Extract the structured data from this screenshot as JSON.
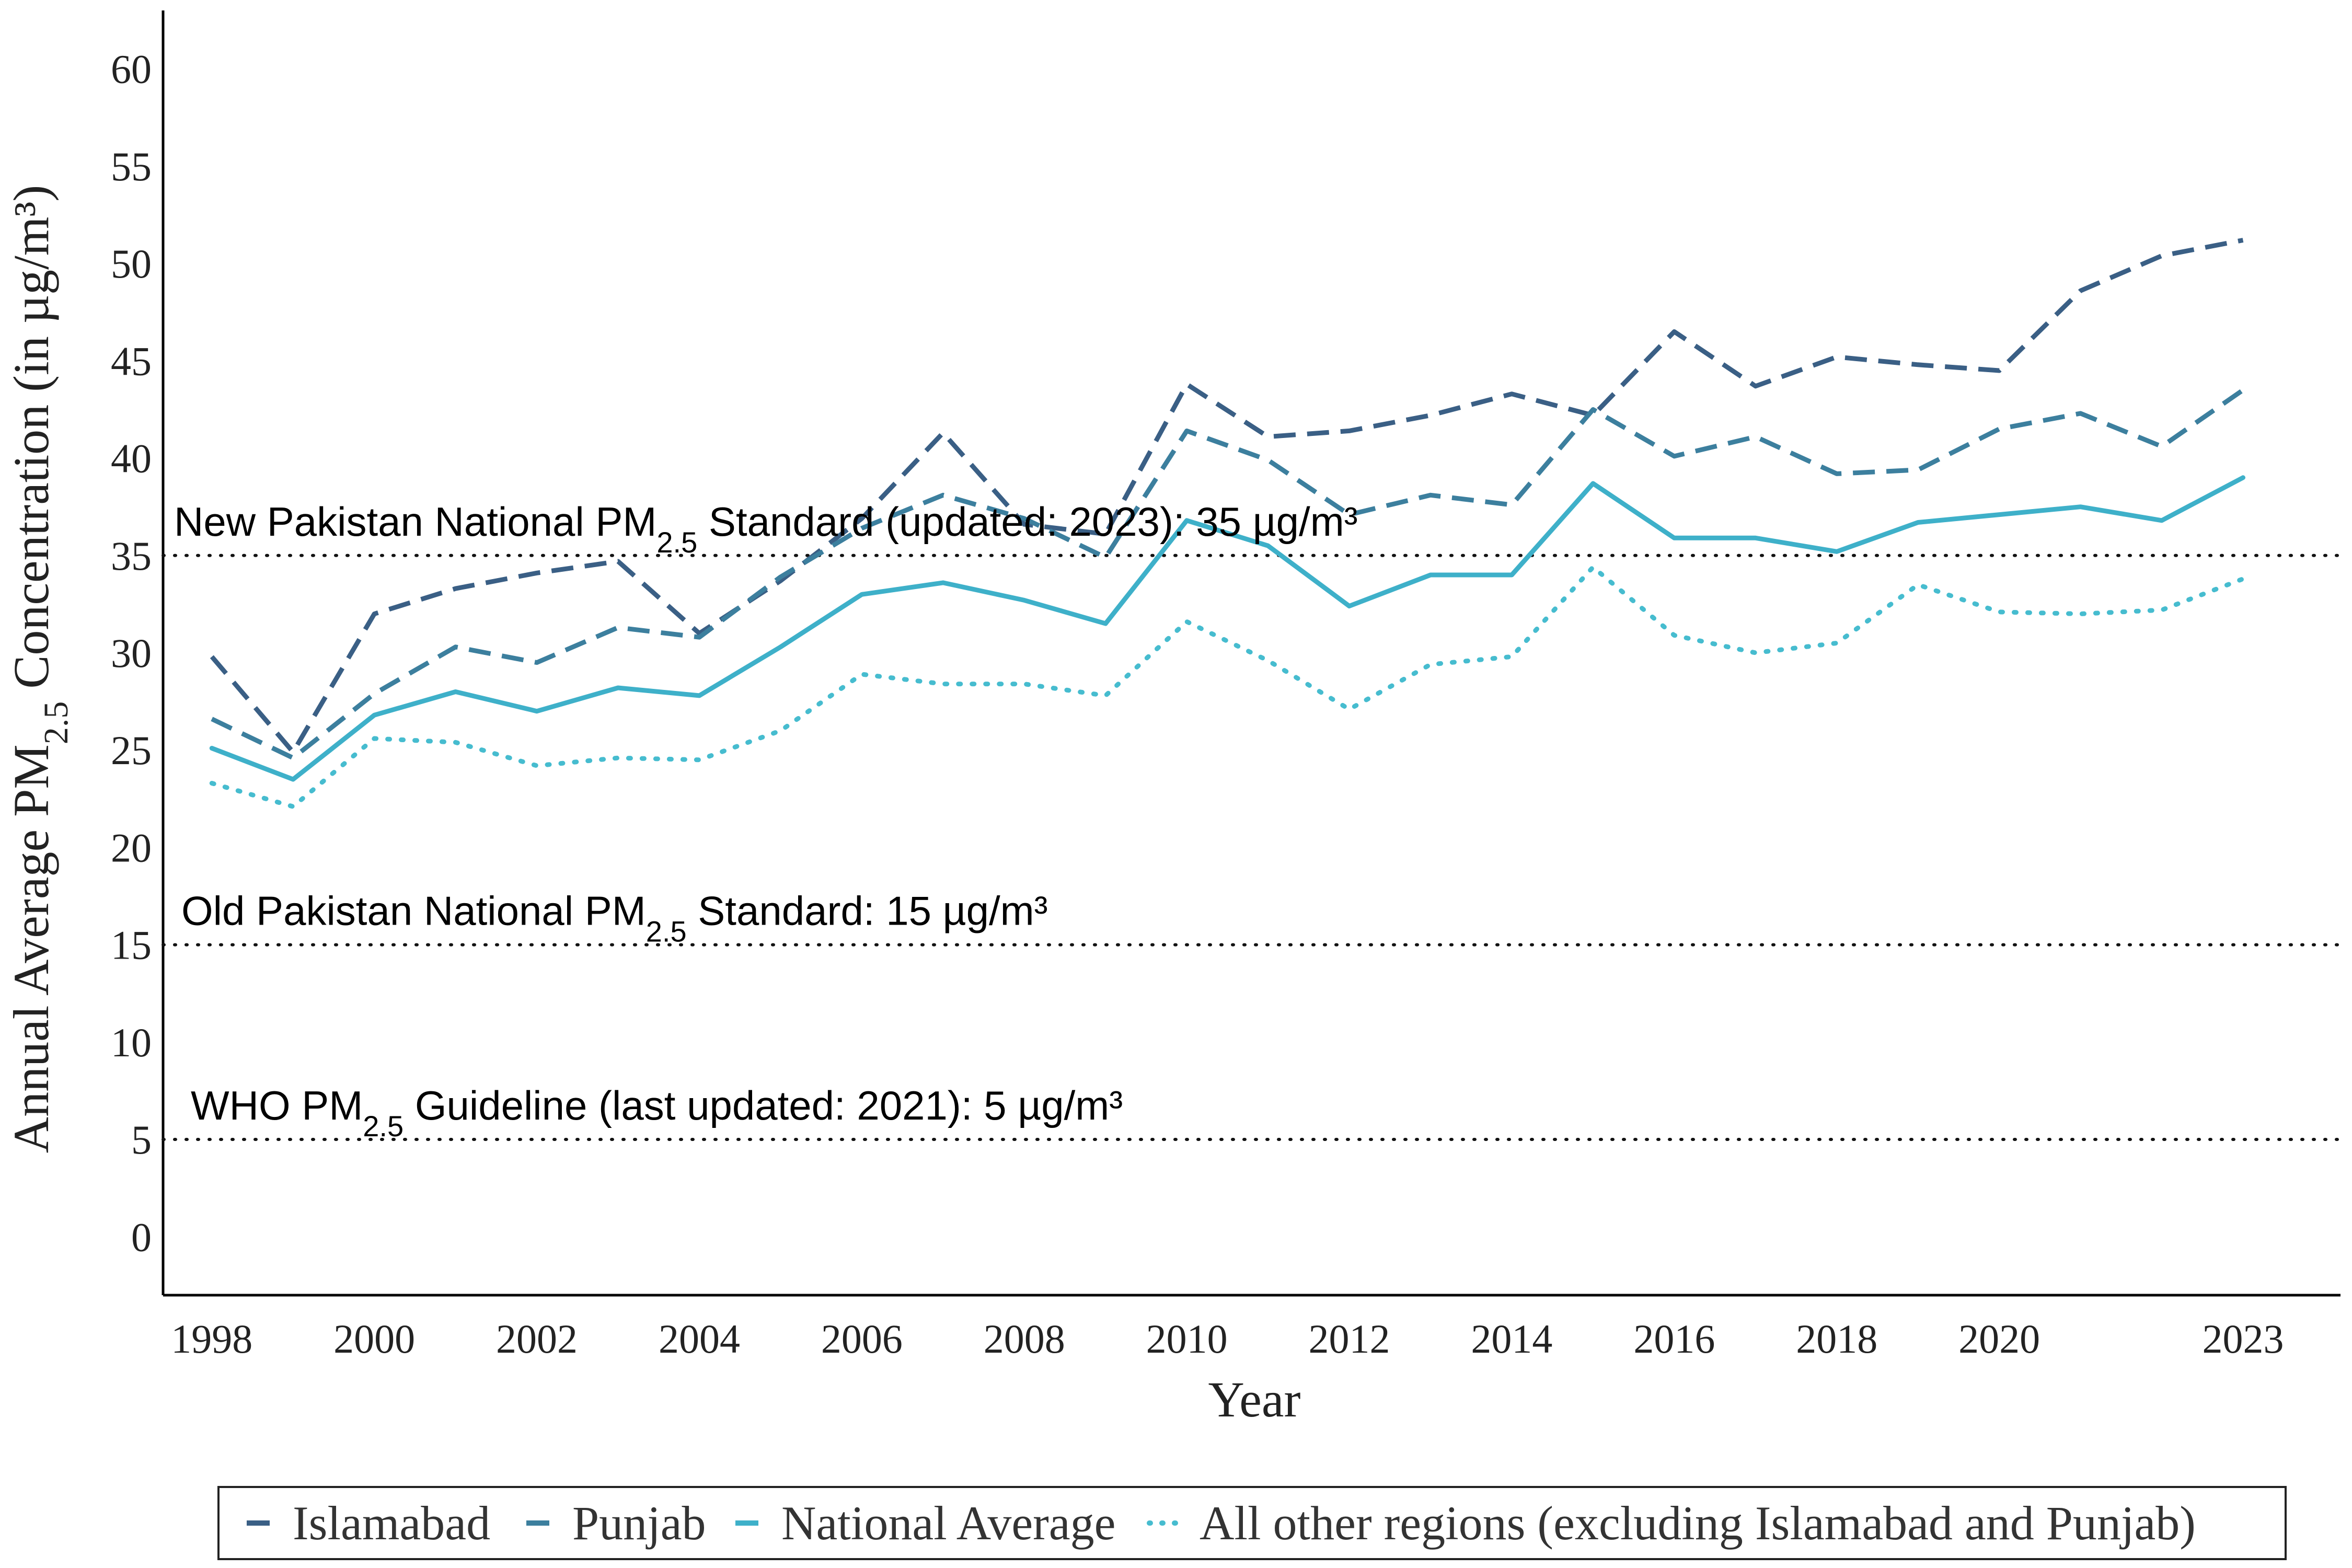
{
  "chart_data": {
    "type": "line",
    "xlabel": "Year",
    "ylabel": {
      "pre": "Annual Average PM",
      "sub": "2.5",
      "post": " Concentration (in µg/m³)"
    },
    "xlim": [
      1997.4,
      2024.2
    ],
    "ylim": [
      -3,
      63
    ],
    "x_ticks": [
      1998,
      2000,
      2002,
      2004,
      2006,
      2008,
      2010,
      2012,
      2014,
      2016,
      2018,
      2020,
      2023
    ],
    "y_ticks": [
      0,
      5,
      10,
      15,
      20,
      25,
      30,
      35,
      40,
      45,
      50,
      55,
      60
    ],
    "x": [
      1998,
      1999,
      2000,
      2001,
      2002,
      2003,
      2004,
      2005,
      2006,
      2007,
      2008,
      2009,
      2010,
      2011,
      2012,
      2013,
      2014,
      2015,
      2016,
      2017,
      2018,
      2019,
      2020,
      2021,
      2022,
      2023
    ],
    "series": [
      {
        "name": "Islamabad",
        "color": "#3a5f85",
        "style": "dashed",
        "values": [
          29.8,
          24.9,
          32.0,
          33.3,
          34.1,
          34.7,
          31.0,
          33.7,
          36.9,
          41.3,
          36.6,
          36.1,
          43.8,
          41.1,
          41.4,
          42.2,
          43.3,
          42.2,
          46.5,
          43.7,
          45.2,
          44.8,
          44.5,
          48.6,
          50.4,
          51.2
        ]
      },
      {
        "name": "Punjab",
        "color": "#3c7f9e",
        "style": "dashed",
        "values": [
          26.6,
          24.6,
          27.9,
          30.3,
          29.5,
          31.3,
          30.8,
          33.9,
          36.4,
          38.1,
          36.9,
          34.9,
          41.4,
          39.9,
          37.1,
          38.1,
          37.6,
          42.5,
          40.1,
          41.1,
          39.2,
          39.4,
          41.5,
          42.3,
          40.6,
          43.5
        ]
      },
      {
        "name": "National Average",
        "color": "#3eb0c9",
        "style": "solid",
        "values": [
          25.1,
          23.5,
          26.8,
          28.0,
          27.0,
          28.2,
          27.8,
          30.3,
          33.0,
          33.6,
          32.7,
          31.5,
          36.8,
          35.5,
          32.4,
          34.0,
          34.0,
          38.7,
          35.9,
          35.9,
          35.2,
          36.7,
          37.1,
          37.5,
          36.8,
          39.0
        ]
      },
      {
        "name": "All other regions (excluding Islamabad and Punjab)",
        "color": "#46bccf",
        "style": "dotted",
        "values": [
          23.3,
          22.1,
          25.6,
          25.4,
          24.2,
          24.6,
          24.5,
          26.0,
          28.9,
          28.4,
          28.4,
          27.8,
          31.6,
          29.6,
          27.1,
          29.4,
          29.8,
          34.4,
          30.9,
          30.0,
          30.5,
          33.5,
          32.1,
          32.0,
          32.2,
          33.8
        ]
      }
    ],
    "reference_lines": [
      {
        "value": 35,
        "label_pre": "New Pakistan National PM",
        "label_sub": "2.5",
        "label_post": " Standard (updated: 2023): 35 µg/m³"
      },
      {
        "value": 15,
        "label_pre": "Old Pakistan National PM",
        "label_sub": "2.5",
        "label_post": " Standard: 15 µg/m³"
      },
      {
        "value": 5,
        "label_pre": "WHO PM",
        "label_sub": "2.5",
        "label_post": " Guideline (last updated: 2021): 5 µg/m³"
      }
    ],
    "grid": false,
    "legend_position": "bottom"
  }
}
